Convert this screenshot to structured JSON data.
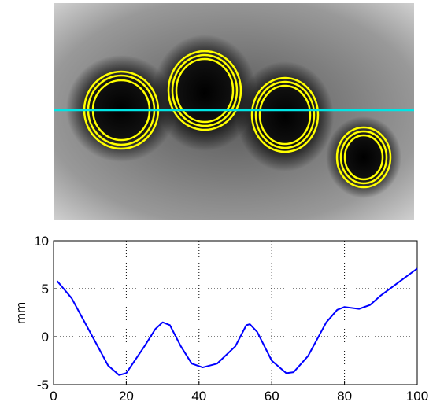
{
  "chart_data": {
    "type": "line",
    "ylabel": "mm",
    "x": [
      1,
      5,
      10,
      15,
      18,
      20,
      25,
      28,
      30,
      32,
      35,
      38,
      41,
      45,
      50,
      53,
      54,
      56,
      60,
      64,
      66,
      70,
      75,
      78,
      80,
      84,
      87,
      90,
      95,
      100
    ],
    "series": [
      {
        "color": "#0000ff",
        "values": [
          5.8,
          4,
          0.5,
          -3,
          -4,
          -3.8,
          -1,
          0.8,
          1.5,
          1.2,
          -1,
          -2.8,
          -3.2,
          -2.8,
          -1,
          1.2,
          1.3,
          0.5,
          -2.5,
          -3.8,
          -3.7,
          -2,
          1.5,
          2.8,
          3.1,
          2.9,
          3.3,
          4.3,
          5.7,
          7.1
        ]
      }
    ],
    "xlim": [
      0,
      100
    ],
    "xticks": [
      0,
      20,
      40,
      60,
      80,
      100
    ],
    "ylim": [
      -5,
      10
    ],
    "yticks": [
      -5,
      0,
      5,
      10
    ],
    "grid": true
  }
}
